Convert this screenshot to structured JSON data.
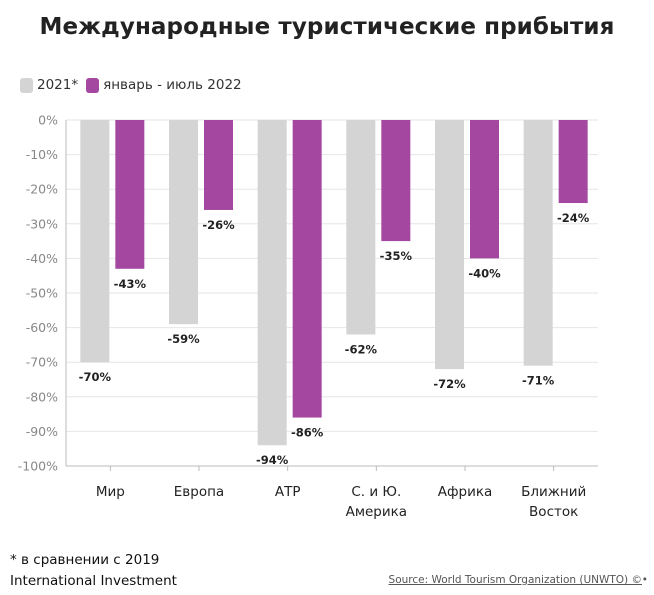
{
  "chart_data": {
    "type": "bar",
    "title": "Международные туристические прибытия",
    "categories": [
      "Мир",
      "Европа",
      "АТР",
      "С. и Ю.\nАмерика",
      "Африка",
      "Ближний\nВосток"
    ],
    "series": [
      {
        "name": "2021*",
        "color": "#d4d4d4",
        "values": [
          -70,
          -59,
          -94,
          -62,
          -72,
          -71
        ],
        "labels": [
          "-70%",
          "-59%",
          "-94%",
          "-62%",
          "-72%",
          "-71%"
        ]
      },
      {
        "name": "январь - июль 2022",
        "color": "#a347a0",
        "values": [
          -43,
          -26,
          -86,
          -35,
          -40,
          -24
        ],
        "labels": [
          "-43%",
          "-26%",
          "-86%",
          "-35%",
          "-40%",
          "-24%"
        ]
      }
    ],
    "ylim": [
      -100,
      0
    ],
    "yticks": [
      0,
      -10,
      -20,
      -30,
      -40,
      -50,
      -60,
      -70,
      -80,
      -90,
      -100
    ],
    "ytick_labels": [
      "0%",
      "-10%",
      "-20%",
      "-30%",
      "-40%",
      "-50%",
      "-60%",
      "-70%",
      "-80%",
      "-90%",
      "-100%"
    ],
    "grid": true,
    "legend": "top-left"
  },
  "footer": {
    "note": "* в сравнении с 2019",
    "brand": "International Investment",
    "source": "Source: World Tourism Organization (UNWTO) ©",
    "dot": "•"
  }
}
